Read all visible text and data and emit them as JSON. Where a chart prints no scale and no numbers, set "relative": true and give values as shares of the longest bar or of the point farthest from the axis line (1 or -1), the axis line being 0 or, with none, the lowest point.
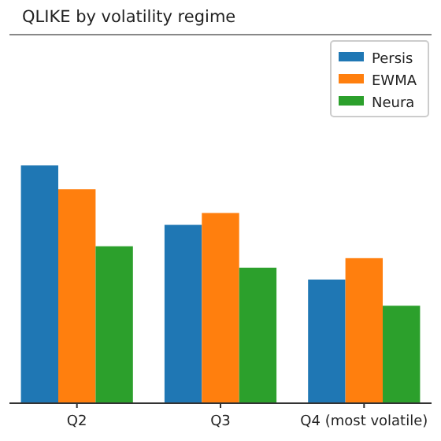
{
  "chart_data": {
    "type": "bar",
    "title": "QLIKE by volatility regime",
    "categories": [
      "Q2",
      "Q3",
      "Q4 (most volatile)"
    ],
    "relative": true,
    "legend": "top right",
    "series": [
      {
        "name": "Persis",
        "color": "#1f77b4",
        "values": [
          1,
          0.75,
          0.52
        ]
      },
      {
        "name": "EWMA",
        "color": "#ff7f0e",
        "values": [
          0.9,
          0.8,
          0.61
        ]
      },
      {
        "name": "Neura",
        "color": "#2ca02c",
        "values": [
          0.66,
          0.57,
          0.41
        ]
      }
    ]
  }
}
